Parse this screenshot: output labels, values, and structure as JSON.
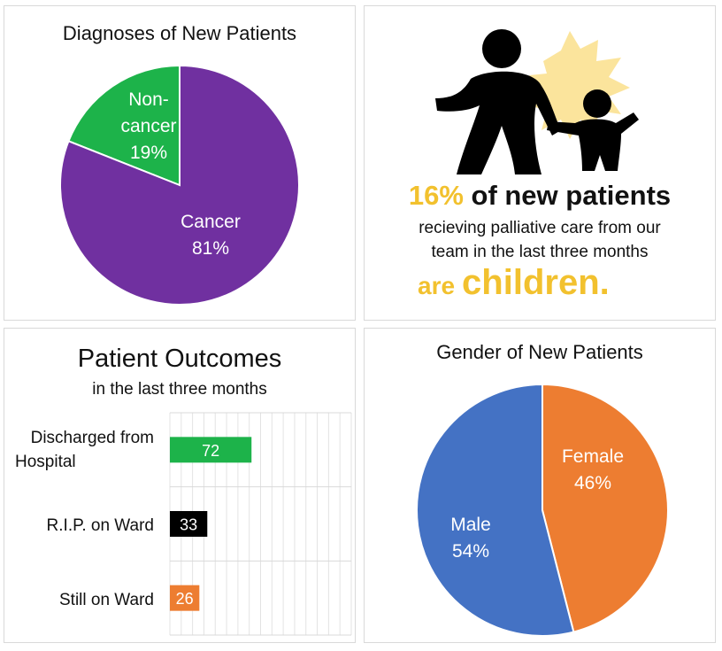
{
  "colors": {
    "purple": "#7030a0",
    "green": "#1db34a",
    "black": "#000000",
    "orange": "#ed7d31",
    "blue": "#4472c4",
    "yellow": "#f2c12e"
  },
  "children_panel": {
    "icon": "adult-and-child-silhouette-icon",
    "headline_percent": "16%",
    "headline_rest": " of new patients",
    "body_line1": "recieving palliative care from our",
    "body_line2": "team in the last three months",
    "tail_are": "are",
    "tail_children": "children."
  },
  "chart_data": [
    {
      "type": "pie",
      "title": "Diagnoses of New Patients",
      "slices": [
        {
          "name": "Non-cancer",
          "value": 19,
          "label_lines": [
            "Non-",
            "cancer",
            "19%"
          ],
          "color": "#1db34a"
        },
        {
          "name": "Cancer",
          "value": 81,
          "label_lines": [
            "Cancer",
            "81%"
          ],
          "color": "#7030a0"
        }
      ]
    },
    {
      "type": "bar",
      "orientation": "horizontal",
      "title": "Patient Outcomes",
      "subtitle": "in the last three months",
      "categories": [
        "Discharged from Hospital",
        "R.I.P. on Ward",
        "Still on Ward"
      ],
      "category_lines": [
        [
          "Discharged from",
          "Hospital"
        ],
        [
          "R.I.P. on Ward"
        ],
        [
          "Still on Ward"
        ]
      ],
      "values": [
        72,
        33,
        26
      ],
      "colors": [
        "#1db34a",
        "#000000",
        "#ed7d31"
      ],
      "value_label_colors": [
        "#ffffff",
        "#ffffff",
        "#ffffff"
      ],
      "xlim": [
        0,
        160
      ],
      "grid": true
    },
    {
      "type": "pie",
      "title": "Gender of New Patients",
      "slices": [
        {
          "name": "Female",
          "value": 46,
          "label_lines": [
            "Female",
            "46%"
          ],
          "color": "#ed7d31"
        },
        {
          "name": "Male",
          "value": 54,
          "label_lines": [
            "Male",
            "54%"
          ],
          "color": "#4472c4"
        }
      ]
    }
  ]
}
